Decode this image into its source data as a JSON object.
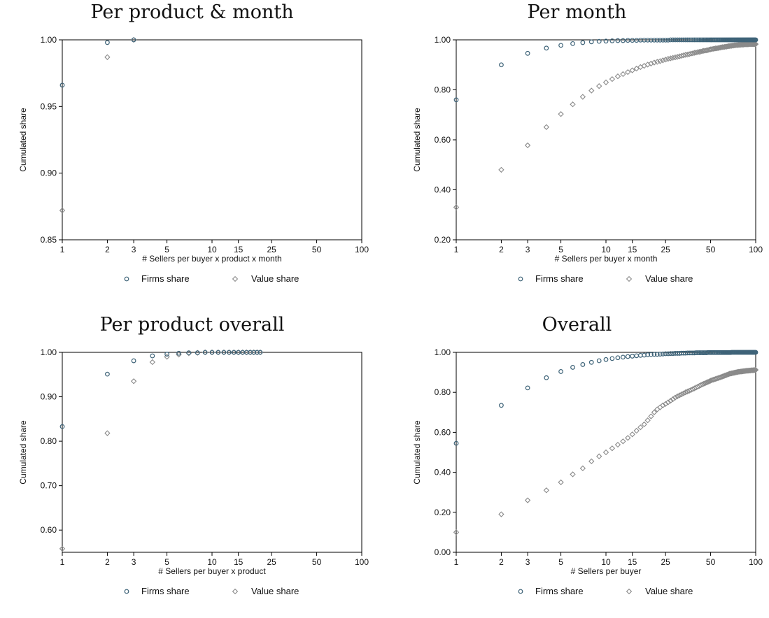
{
  "colors": {
    "firms": "#3e6378",
    "value": "#8a8a8a",
    "frame": "#000000"
  },
  "chart_data": [
    {
      "type": "scatter",
      "title": "Per product & month",
      "xlabel": "# Sellers per buyer x product x month",
      "ylabel": "Cumulated share",
      "xscale": "log",
      "xlim": [
        1,
        100
      ],
      "xticks": [
        "1",
        "2",
        "3",
        "5",
        "10",
        "15",
        "25",
        "50",
        "100"
      ],
      "ylim": [
        0.85,
        1.0
      ],
      "yticks": [
        "0.85",
        "0.90",
        "0.95",
        "1.00"
      ],
      "legend": [
        "Firms share",
        "Value share"
      ],
      "series": [
        {
          "name": "Firms share",
          "marker": "circle",
          "x": [
            1,
            2,
            3
          ],
          "y": [
            0.966,
            0.998,
            1.0
          ]
        },
        {
          "name": "Value share",
          "marker": "diamond",
          "x": [
            1,
            2,
            3
          ],
          "y": [
            0.872,
            0.987,
            1.0
          ]
        }
      ]
    },
    {
      "type": "scatter",
      "title": "Per month",
      "xlabel": "# Sellers per buyer x month",
      "ylabel": "Cumulated share",
      "xscale": "log",
      "xlim": [
        1,
        100
      ],
      "xticks": [
        "1",
        "2",
        "3",
        "5",
        "10",
        "15",
        "25",
        "50",
        "100"
      ],
      "ylim": [
        0.2,
        1.0
      ],
      "yticks": [
        "0.20",
        "0.40",
        "0.60",
        "0.80",
        "1.00"
      ],
      "legend": [
        "Firms share",
        "Value share"
      ],
      "series": [
        {
          "name": "Firms share",
          "marker": "circle",
          "x": [
            1,
            2,
            3,
            4,
            5,
            6,
            7,
            8,
            9,
            10,
            11,
            12,
            13,
            14,
            15,
            16,
            17,
            18,
            19,
            20,
            21,
            22,
            23,
            24,
            25,
            26,
            27,
            28,
            29,
            30,
            31,
            32,
            33,
            34,
            35,
            36,
            37,
            38,
            39,
            40,
            41,
            42,
            43,
            44,
            45,
            46,
            47,
            48,
            49,
            50,
            51,
            52,
            53,
            54,
            55,
            56,
            57,
            58,
            59,
            60,
            61,
            62,
            63,
            64,
            65,
            66,
            67,
            68,
            69,
            70,
            71,
            72,
            73,
            74,
            75,
            76,
            77,
            78,
            79,
            80,
            81,
            82,
            83,
            84,
            85,
            86,
            87,
            88,
            89,
            90,
            91,
            92,
            93,
            94,
            95,
            96,
            97,
            98,
            99,
            100
          ],
          "y": [
            0.76,
            0.9,
            0.946,
            0.967,
            0.978,
            0.985,
            0.989,
            0.992,
            0.994,
            0.995,
            0.996,
            0.997,
            0.997,
            0.998,
            0.998,
            0.998,
            0.999,
            0.999,
            0.999,
            0.999,
            0.999,
            0.999,
            0.999,
            0.999,
            0.999,
            0.999,
            1,
            1,
            1,
            1,
            1,
            1,
            1,
            1,
            1,
            1,
            1,
            1,
            1,
            1,
            1,
            1,
            1,
            1,
            1,
            1,
            1,
            1,
            1,
            1,
            1,
            1,
            1,
            1,
            1,
            1,
            1,
            1,
            1,
            1,
            1,
            1,
            1,
            1,
            1,
            1,
            1,
            1,
            1,
            1,
            1,
            1,
            1,
            1,
            1,
            1,
            1,
            1,
            1,
            1,
            1,
            1,
            1,
            1,
            1,
            1,
            1,
            1,
            1,
            1,
            1,
            1,
            1,
            1,
            1,
            1,
            1,
            1,
            1,
            1
          ]
        },
        {
          "name": "Value share",
          "marker": "diamond",
          "x": [
            1,
            2,
            3,
            4,
            5,
            6,
            7,
            8,
            9,
            10,
            11,
            12,
            13,
            14,
            15,
            16,
            17,
            18,
            19,
            20,
            21,
            22,
            23,
            24,
            25,
            26,
            27,
            28,
            29,
            30,
            31,
            32,
            33,
            34,
            35,
            36,
            37,
            38,
            39,
            40,
            41,
            42,
            43,
            44,
            45,
            46,
            47,
            48,
            49,
            50,
            51,
            52,
            53,
            54,
            55,
            56,
            57,
            58,
            59,
            60,
            61,
            62,
            63,
            64,
            65,
            66,
            67,
            68,
            69,
            70,
            71,
            72,
            73,
            74,
            75,
            76,
            77,
            78,
            79,
            80,
            81,
            82,
            83,
            84,
            85,
            86,
            87,
            88,
            89,
            90,
            91,
            92,
            93,
            94,
            95,
            96,
            97,
            98,
            99,
            100
          ],
          "y": [
            0.33,
            0.48,
            0.578,
            0.651,
            0.703,
            0.742,
            0.772,
            0.797,
            0.815,
            0.83,
            0.843,
            0.854,
            0.863,
            0.871,
            0.878,
            0.885,
            0.891,
            0.896,
            0.901,
            0.905,
            0.909,
            0.912,
            0.915,
            0.918,
            0.921,
            0.924,
            0.926,
            0.928,
            0.93,
            0.932,
            0.934,
            0.936,
            0.938,
            0.94,
            0.941,
            0.943,
            0.945,
            0.946,
            0.948,
            0.949,
            0.951,
            0.952,
            0.953,
            0.955,
            0.956,
            0.957,
            0.958,
            0.959,
            0.961,
            0.962,
            0.963,
            0.964,
            0.965,
            0.966,
            0.966,
            0.967,
            0.968,
            0.969,
            0.97,
            0.971,
            0.971,
            0.972,
            0.973,
            0.973,
            0.974,
            0.975,
            0.975,
            0.976,
            0.976,
            0.977,
            0.977,
            0.978,
            0.978,
            0.979,
            0.979,
            0.979,
            0.98,
            0.98,
            0.98,
            0.981,
            0.981,
            0.981,
            0.981,
            0.982,
            0.982,
            0.982,
            0.982,
            0.982,
            0.982,
            0.983,
            0.983,
            0.983,
            0.983,
            0.983,
            0.983,
            0.983,
            0.983,
            0.983,
            0.983,
            0.983
          ]
        }
      ]
    },
    {
      "type": "scatter",
      "title": "Per product overall",
      "xlabel": "# Sellers per buyer x product",
      "ylabel": "Cumulated share",
      "xscale": "log",
      "xlim": [
        1,
        100
      ],
      "xticks": [
        "1",
        "2",
        "3",
        "5",
        "10",
        "15",
        "25",
        "50",
        "100"
      ],
      "ylim": [
        0.55,
        1.0
      ],
      "yticks": [
        "0.60",
        "0.70",
        "0.80",
        "0.90",
        "1.00"
      ],
      "legend": [
        "Firms share",
        "Value share"
      ],
      "series": [
        {
          "name": "Firms share",
          "marker": "circle",
          "x": [
            1,
            2,
            3,
            4,
            5,
            6,
            7,
            8,
            9,
            10,
            11,
            12,
            13,
            14,
            15,
            16,
            17,
            18,
            19,
            20,
            21
          ],
          "y": [
            0.833,
            0.951,
            0.981,
            0.992,
            0.996,
            0.998,
            0.999,
            0.999,
            1,
            1,
            1,
            1,
            1,
            1,
            1,
            1,
            1,
            1,
            1,
            1,
            1
          ]
        },
        {
          "name": "Value share",
          "marker": "diamond",
          "x": [
            1,
            2,
            3,
            4,
            5,
            6,
            7,
            8,
            9,
            10,
            11,
            12,
            13,
            14,
            15,
            16,
            17,
            18,
            19,
            20,
            21
          ],
          "y": [
            0.558,
            0.818,
            0.935,
            0.978,
            0.99,
            0.995,
            0.998,
            0.999,
            1,
            1,
            1,
            1,
            1,
            1,
            1,
            1,
            1,
            1,
            1,
            1,
            1
          ]
        }
      ]
    },
    {
      "type": "scatter",
      "title": "Overall",
      "xlabel": "# Sellers per buyer",
      "ylabel": "Cumulated share",
      "xscale": "log",
      "xlim": [
        1,
        100
      ],
      "xticks": [
        "1",
        "2",
        "3",
        "5",
        "10",
        "15",
        "25",
        "50",
        "100"
      ],
      "ylim": [
        0.0,
        1.0
      ],
      "yticks": [
        "0.00",
        "0.20",
        "0.40",
        "0.60",
        "0.80",
        "1.00"
      ],
      "legend": [
        "Firms share",
        "Value share"
      ],
      "series": [
        {
          "name": "Firms share",
          "marker": "circle",
          "x": [
            1,
            2,
            3,
            4,
            5,
            6,
            7,
            8,
            9,
            10,
            11,
            12,
            13,
            14,
            15,
            16,
            17,
            18,
            19,
            20,
            21,
            22,
            23,
            24,
            25,
            26,
            27,
            28,
            29,
            30,
            31,
            32,
            33,
            34,
            35,
            36,
            37,
            38,
            39,
            40,
            41,
            42,
            43,
            44,
            45,
            46,
            47,
            48,
            49,
            50,
            51,
            52,
            53,
            54,
            55,
            56,
            57,
            58,
            59,
            60,
            61,
            62,
            63,
            64,
            65,
            66,
            67,
            68,
            69,
            70,
            71,
            72,
            73,
            74,
            75,
            76,
            77,
            78,
            79,
            80,
            81,
            82,
            83,
            84,
            85,
            86,
            87,
            88,
            89,
            90,
            91,
            92,
            93,
            94,
            95,
            96,
            97,
            98,
            99,
            100
          ],
          "y": [
            0.545,
            0.735,
            0.822,
            0.873,
            0.904,
            0.925,
            0.939,
            0.95,
            0.958,
            0.964,
            0.969,
            0.973,
            0.976,
            0.979,
            0.981,
            0.983,
            0.985,
            0.986,
            0.988,
            0.989,
            0.99,
            0.99,
            0.991,
            0.992,
            0.993,
            0.993,
            0.994,
            0.994,
            0.995,
            0.995,
            0.995,
            0.996,
            0.996,
            0.996,
            0.997,
            0.997,
            0.997,
            0.997,
            0.997,
            0.998,
            0.998,
            0.998,
            0.998,
            0.998,
            0.998,
            0.998,
            0.998,
            0.999,
            0.999,
            0.999,
            0.999,
            0.999,
            0.999,
            0.999,
            0.999,
            0.999,
            0.999,
            0.999,
            0.999,
            0.999,
            0.999,
            0.999,
            0.999,
            0.999,
            0.999,
            0.999,
            0.999,
            0.999,
            1,
            1,
            1,
            1,
            1,
            1,
            1,
            1,
            1,
            1,
            1,
            1,
            1,
            1,
            1,
            1,
            1,
            1,
            1,
            1,
            1,
            1,
            1,
            1,
            1,
            1,
            1,
            1,
            1,
            1,
            1,
            1
          ]
        },
        {
          "name": "Value share",
          "marker": "diamond",
          "x": [
            1,
            2,
            3,
            4,
            5,
            6,
            7,
            8,
            9,
            10,
            11,
            12,
            13,
            14,
            15,
            16,
            17,
            18,
            19,
            20,
            21,
            22,
            23,
            24,
            25,
            26,
            27,
            28,
            29,
            30,
            31,
            32,
            33,
            34,
            35,
            36,
            37,
            38,
            39,
            40,
            41,
            42,
            43,
            44,
            45,
            46,
            47,
            48,
            49,
            50,
            51,
            52,
            53,
            54,
            55,
            56,
            57,
            58,
            59,
            60,
            61,
            62,
            63,
            64,
            65,
            66,
            67,
            68,
            69,
            70,
            71,
            72,
            73,
            74,
            75,
            76,
            77,
            78,
            79,
            80,
            81,
            82,
            83,
            84,
            85,
            86,
            87,
            88,
            89,
            90,
            91,
            92,
            93,
            94,
            95,
            96,
            97,
            98,
            99,
            100
          ],
          "y": [
            0.1,
            0.19,
            0.26,
            0.31,
            0.35,
            0.39,
            0.42,
            0.455,
            0.48,
            0.5,
            0.52,
            0.538,
            0.555,
            0.572,
            0.59,
            0.608,
            0.625,
            0.64,
            0.66,
            0.68,
            0.7,
            0.715,
            0.725,
            0.735,
            0.742,
            0.75,
            0.758,
            0.766,
            0.774,
            0.78,
            0.785,
            0.79,
            0.795,
            0.8,
            0.804,
            0.808,
            0.812,
            0.816,
            0.82,
            0.824,
            0.828,
            0.832,
            0.836,
            0.84,
            0.843,
            0.846,
            0.849,
            0.852,
            0.855,
            0.858,
            0.861,
            0.863,
            0.865,
            0.867,
            0.869,
            0.871,
            0.873,
            0.875,
            0.877,
            0.879,
            0.881,
            0.883,
            0.885,
            0.887,
            0.889,
            0.891,
            0.893,
            0.894,
            0.895,
            0.896,
            0.897,
            0.898,
            0.899,
            0.9,
            0.901,
            0.902,
            0.903,
            0.903,
            0.904,
            0.904,
            0.905,
            0.905,
            0.906,
            0.906,
            0.907,
            0.907,
            0.908,
            0.908,
            0.908,
            0.909,
            0.909,
            0.909,
            0.91,
            0.91,
            0.91,
            0.91,
            0.911,
            0.911,
            0.911,
            0.912
          ]
        }
      ]
    }
  ]
}
